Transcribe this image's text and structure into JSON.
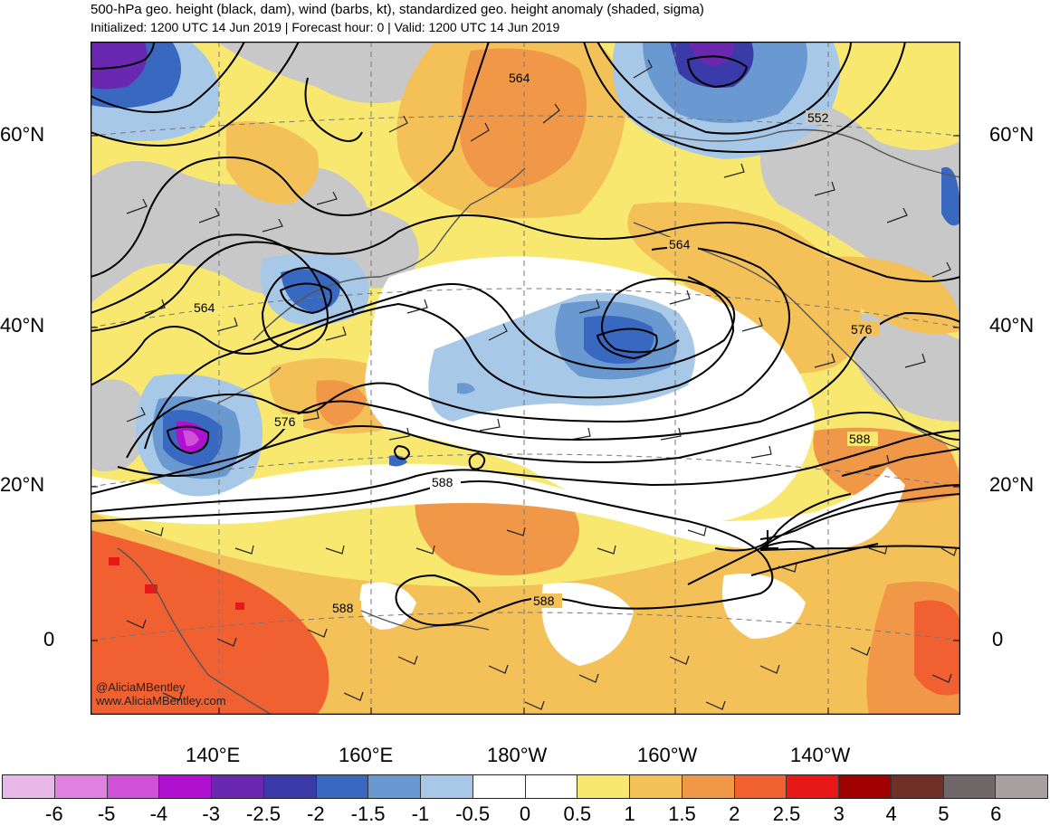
{
  "header": {
    "title": "500-hPa geo. height (black, dam), wind (barbs, kt), standardized geo. height anomaly (shaded, sigma)",
    "subtitle": "Initialized: 1200 UTC 14 Jun 2019 | Forecast hour: 0 | Valid: 1200 UTC 14 Jun 2019"
  },
  "lat_labels": [
    "60°N",
    "40°N",
    "20°N",
    "0"
  ],
  "lon_labels": [
    "140°E",
    "160°E",
    "180°W",
    "160°W",
    "140°W"
  ],
  "contour_labels": [
    "564",
    "552",
    "564",
    "564",
    "576",
    "576",
    "588",
    "588",
    "588",
    "588"
  ],
  "credit": {
    "handle": "@AliciaMBentley",
    "site": "www.AliciaMBentley.com"
  },
  "colorbar": {
    "labels": [
      "-6",
      "-5",
      "-4",
      "-3",
      "-2.5",
      "-2",
      "-1.5",
      "-1",
      "-0.5",
      "0",
      "0.5",
      "1",
      "1.5",
      "2",
      "2.5",
      "3",
      "4",
      "5",
      "6"
    ],
    "colors": [
      "#e8b8e8",
      "#e080e0",
      "#d050d8",
      "#b010d0",
      "#6a28b0",
      "#3a3aa8",
      "#3868c0",
      "#6a98d0",
      "#a8c8e8",
      "#ffffff",
      "#ffffff",
      "#f8e870",
      "#f4c058",
      "#f09848",
      "#f06030",
      "#e81818",
      "#a00000",
      "#703028",
      "#706868",
      "#a8a0a0"
    ]
  }
}
